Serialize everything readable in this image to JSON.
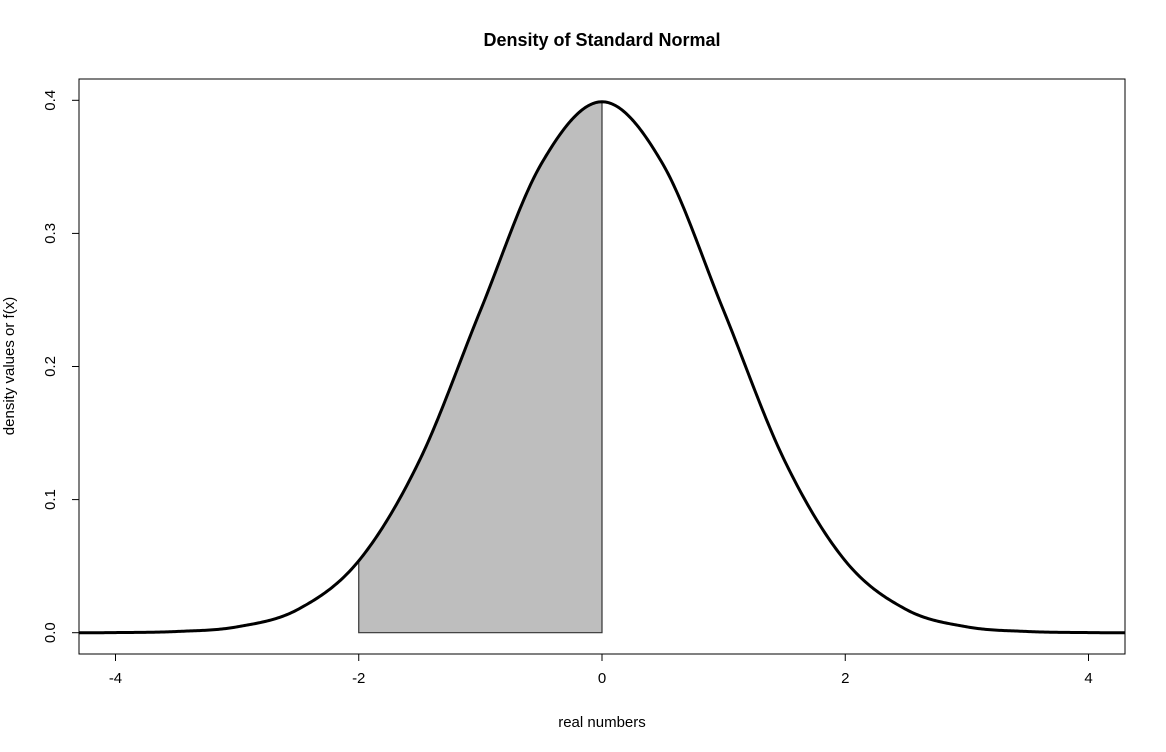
{
  "chart_data": {
    "type": "area",
    "title": "Density of Standard Normal",
    "xlabel": "real numbers",
    "ylabel": "density values or f(x)",
    "xlim": [
      -4.3,
      4.3
    ],
    "ylim": [
      -0.016,
      0.416
    ],
    "x_ticks": [
      -4,
      -2,
      0,
      2,
      4
    ],
    "x_tick_labels": [
      "-4",
      "-2",
      "0",
      "2",
      "4"
    ],
    "y_ticks": [
      0.0,
      0.1,
      0.2,
      0.3,
      0.4
    ],
    "y_tick_labels": [
      "0.0",
      "0.1",
      "0.2",
      "0.3",
      "0.4"
    ],
    "grid": false,
    "series": [
      {
        "x": [
          -4.3,
          -4.0,
          -3.5,
          -3.0,
          -2.5,
          -2.0,
          -1.5,
          -1.0,
          -0.5,
          0.0,
          0.5,
          1.0,
          1.5,
          2.0,
          2.5,
          3.0,
          3.5,
          4.0,
          4.3
        ],
        "y": [
          0.0,
          0.0001,
          0.0009,
          0.0044,
          0.0175,
          0.054,
          0.1295,
          0.242,
          0.3521,
          0.3989,
          0.3521,
          0.242,
          0.1295,
          0.054,
          0.0175,
          0.0044,
          0.0009,
          0.0001,
          0.0
        ],
        "color": "#000000"
      }
    ],
    "shaded_region": {
      "x_from": -2,
      "x_to": 0,
      "fill": "#bebebe",
      "stroke": "#333333"
    }
  }
}
